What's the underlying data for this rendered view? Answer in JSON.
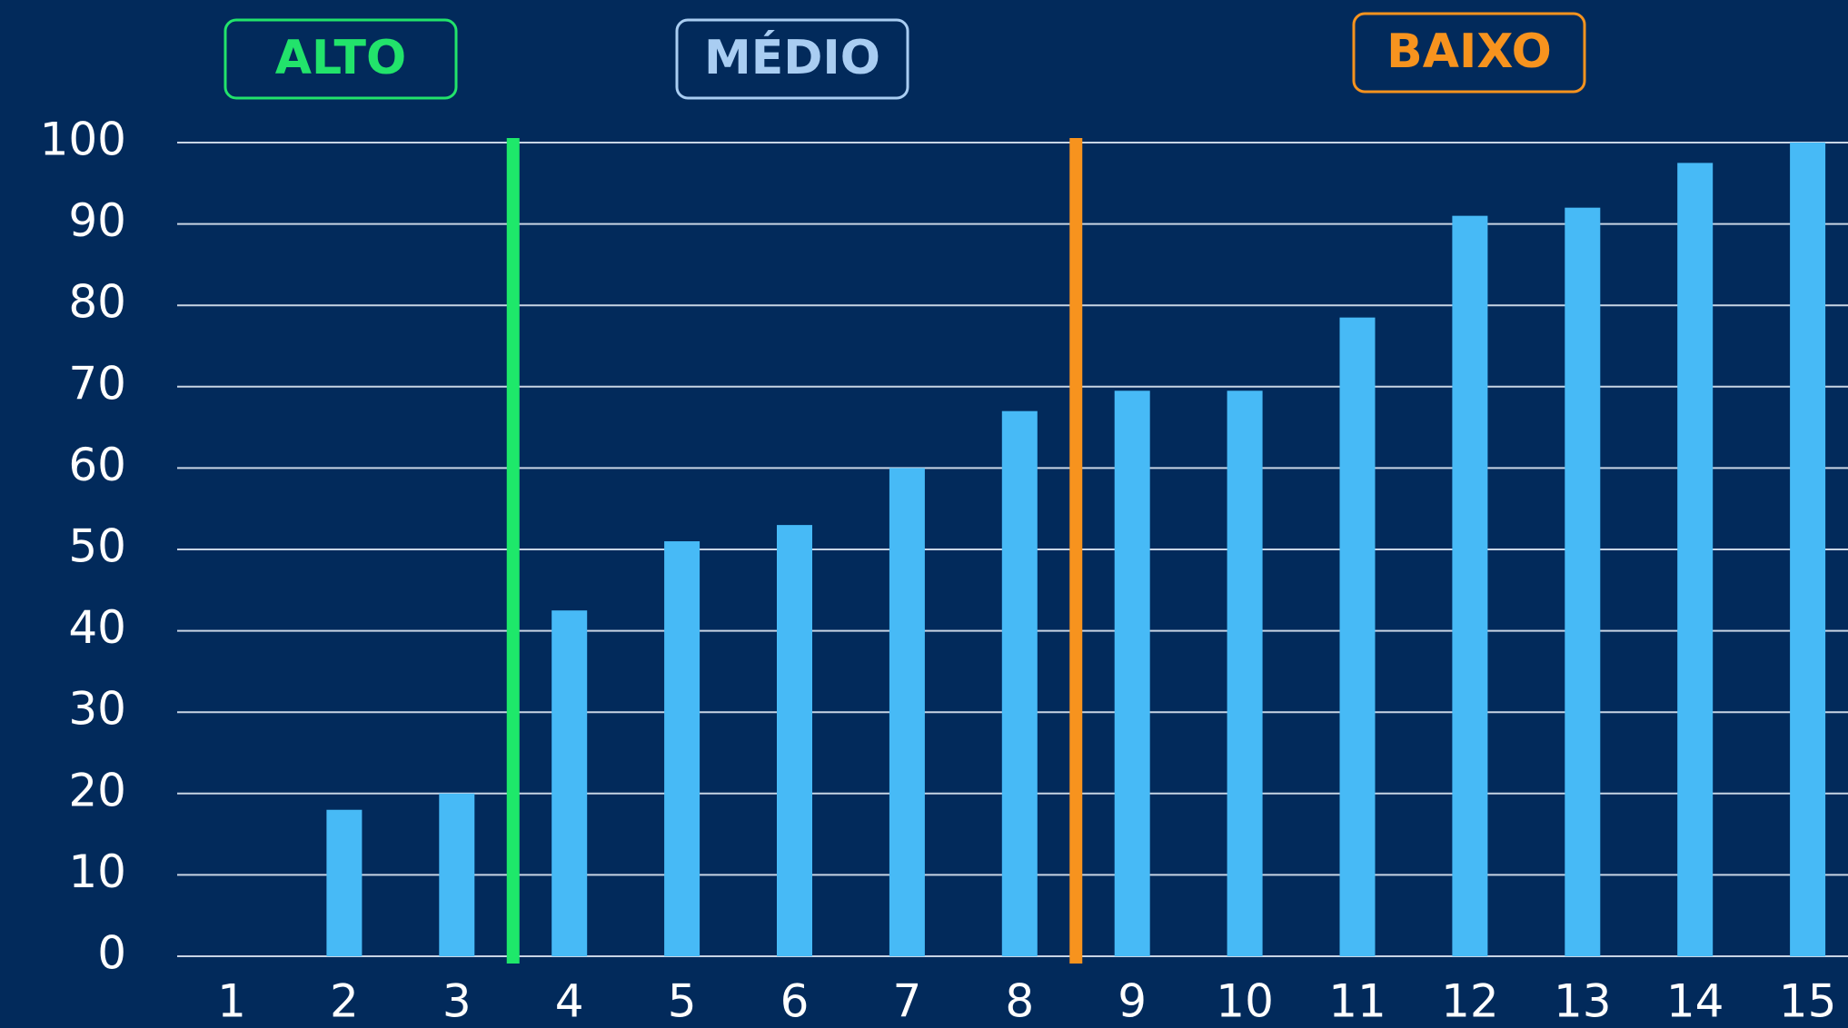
{
  "chart_data": {
    "type": "bar",
    "categories": [
      "1",
      "2",
      "3",
      "4",
      "5",
      "6",
      "7",
      "8",
      "9",
      "10",
      "11",
      "12",
      "13",
      "14",
      "15"
    ],
    "values": [
      0,
      18,
      20,
      42.5,
      51,
      53,
      60,
      67,
      69.5,
      69.5,
      78.5,
      91,
      92,
      97.5,
      100
    ],
    "color": "#47baf6",
    "ylim": [
      0,
      100
    ],
    "yticks": [
      0,
      10,
      20,
      30,
      40,
      50,
      60,
      70,
      80,
      90,
      100
    ],
    "grid": true,
    "dividers": [
      {
        "x": 3.5,
        "color": "#1ee86a"
      },
      {
        "x": 8.5,
        "color": "#f7931e"
      }
    ],
    "annotations": [
      {
        "text": "ALTO",
        "color": "#22e36b"
      },
      {
        "text": "MÉDIO",
        "color": "#a9cdf2"
      },
      {
        "text": "BAIXO",
        "color": "#f7931e"
      }
    ]
  }
}
